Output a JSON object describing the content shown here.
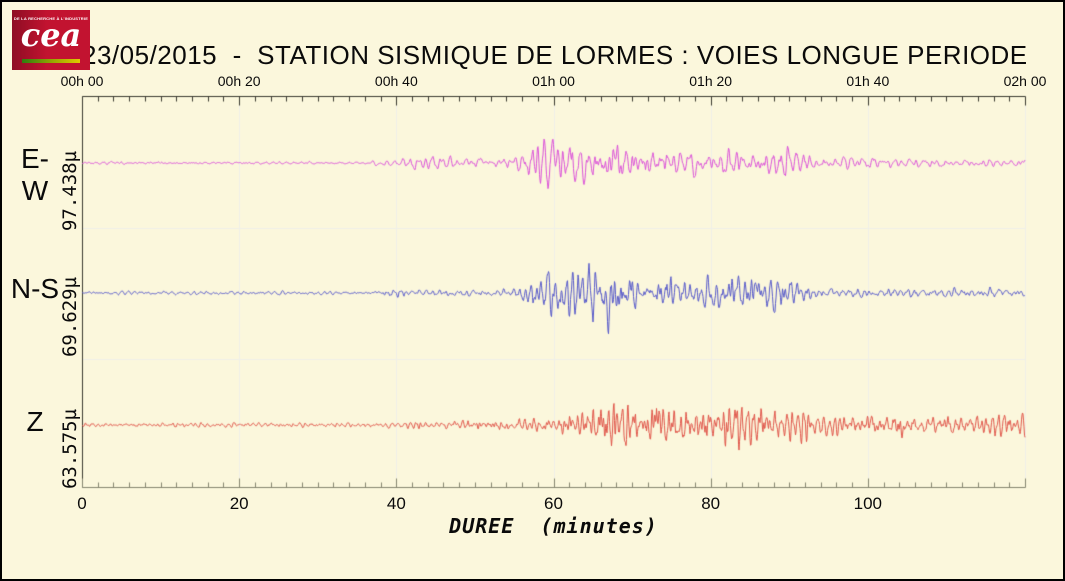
{
  "logo": {
    "brand": "cea",
    "tagline": "DE LA RECHERCHE À L'INDUSTRIE"
  },
  "colors": {
    "background": "#FBF7DC",
    "axis": "#39392f",
    "bottom_axis": "#84846f",
    "grid": "#EFEFE8",
    "logo_red": "#c21330",
    "trace_ew": "#DA4FD8",
    "trace_ns": "#5356C9",
    "trace_z": "#DF5348"
  },
  "chart_data": {
    "type": "line",
    "title": "23/05/2015  -  STATION SISMIQUE DE LORMES : VOIES LONGUE PERIODE",
    "subtitle": "",
    "xlabel": "DUREE  (minutes)",
    "ylabel": "",
    "x_axis": {
      "unit": "minutes",
      "range": [
        0,
        120
      ],
      "top_ticks": [
        "00h 00",
        "00h 20",
        "00h 40",
        "01h 00",
        "01h 20",
        "01h 40",
        "02h 00"
      ],
      "bottom_ticks": [
        0,
        20,
        40,
        60,
        80,
        100
      ],
      "major_tick_minutes": 20,
      "minor_tick_minutes": 2,
      "grid": "faint vertical lines every 20 minutes"
    },
    "legend_position": "left margin (trace names stacked)",
    "series": [
      {
        "name": "E-W",
        "peak_amplitude_label": "97.438µ",
        "color": "#DA4FD8",
        "description": "East-West long-period channel; quiet until ~40 min, strong event onset ~57 min, maximum ~61 min, slow coda decay",
        "envelope": [
          [
            0,
            0.045
          ],
          [
            36,
            0.045
          ],
          [
            40,
            0.1
          ],
          [
            42,
            0.16
          ],
          [
            44,
            0.16
          ],
          [
            46,
            0.13
          ],
          [
            48,
            0.13
          ],
          [
            50,
            0.14
          ],
          [
            52,
            0.15
          ],
          [
            54,
            0.18
          ],
          [
            56,
            0.3
          ],
          [
            57,
            0.45
          ],
          [
            58,
            0.55
          ],
          [
            60,
            0.8
          ],
          [
            61,
            1.0
          ],
          [
            62,
            0.95
          ],
          [
            63,
            0.85
          ],
          [
            64,
            0.6
          ],
          [
            65,
            0.55
          ],
          [
            66,
            0.5
          ],
          [
            68,
            0.55
          ],
          [
            70,
            0.5
          ],
          [
            72,
            0.42
          ],
          [
            74,
            0.4
          ],
          [
            76,
            0.35
          ],
          [
            78,
            0.38
          ],
          [
            80,
            0.35
          ],
          [
            82,
            0.4
          ],
          [
            84,
            0.35
          ],
          [
            86,
            0.3
          ],
          [
            88,
            0.42
          ],
          [
            90,
            0.45
          ],
          [
            91,
            0.4
          ],
          [
            92,
            0.3
          ],
          [
            94,
            0.18
          ],
          [
            96,
            0.15
          ],
          [
            98,
            0.16
          ],
          [
            100,
            0.15
          ],
          [
            102,
            0.13
          ],
          [
            104,
            0.14
          ],
          [
            106,
            0.12
          ],
          [
            108,
            0.14
          ],
          [
            110,
            0.12
          ],
          [
            112,
            0.13
          ],
          [
            114,
            0.12
          ],
          [
            116,
            0.13
          ],
          [
            118,
            0.12
          ],
          [
            120,
            0.13
          ]
        ]
      },
      {
        "name": "N-S",
        "peak_amplitude_label": "69.629µ",
        "color": "#5356C9",
        "description": "North-South long-period channel; small burst ~41 min, main event 57-90 min with maximum spike ~67 min",
        "envelope": [
          [
            0,
            0.04
          ],
          [
            36,
            0.05
          ],
          [
            40,
            0.13
          ],
          [
            42,
            0.1
          ],
          [
            44,
            0.08
          ],
          [
            46,
            0.08
          ],
          [
            48,
            0.09
          ],
          [
            50,
            0.1
          ],
          [
            52,
            0.1
          ],
          [
            54,
            0.13
          ],
          [
            56,
            0.25
          ],
          [
            58,
            0.45
          ],
          [
            60,
            0.6
          ],
          [
            61,
            0.65
          ],
          [
            62,
            0.7
          ],
          [
            63,
            0.8
          ],
          [
            64,
            0.7
          ],
          [
            65,
            0.65
          ],
          [
            66,
            0.7
          ],
          [
            67,
            1.0
          ],
          [
            68,
            0.7
          ],
          [
            69,
            0.6
          ],
          [
            70,
            0.55
          ],
          [
            71,
            0.5
          ],
          [
            72,
            0.48
          ],
          [
            73,
            0.55
          ],
          [
            74,
            0.6
          ],
          [
            75,
            0.5
          ],
          [
            76,
            0.45
          ],
          [
            78,
            0.45
          ],
          [
            80,
            0.5
          ],
          [
            81,
            0.55
          ],
          [
            82,
            0.45
          ],
          [
            84,
            0.4
          ],
          [
            86,
            0.45
          ],
          [
            88,
            0.48
          ],
          [
            89,
            0.5
          ],
          [
            90,
            0.4
          ],
          [
            91,
            0.3
          ],
          [
            92,
            0.25
          ],
          [
            93,
            0.2
          ],
          [
            94,
            0.18
          ],
          [
            96,
            0.15
          ],
          [
            98,
            0.18
          ],
          [
            100,
            0.15
          ],
          [
            102,
            0.13
          ],
          [
            104,
            0.13
          ],
          [
            106,
            0.15
          ],
          [
            108,
            0.13
          ],
          [
            110,
            0.12
          ],
          [
            112,
            0.13
          ],
          [
            114,
            0.12
          ],
          [
            116,
            0.14
          ],
          [
            118,
            0.13
          ],
          [
            120,
            0.14
          ]
        ]
      },
      {
        "name": "Z",
        "peak_amplitude_label": "63.575µ",
        "color": "#DF5348",
        "description": "Vertical long-period channel; elevated background noise, event builds from ~62 min, large spikes ~67, ~73 and maximum ~83 min, long energetic coda to end",
        "envelope": [
          [
            0,
            0.06
          ],
          [
            4,
            0.07
          ],
          [
            8,
            0.06
          ],
          [
            12,
            0.07
          ],
          [
            16,
            0.06
          ],
          [
            20,
            0.07
          ],
          [
            24,
            0.06
          ],
          [
            28,
            0.07
          ],
          [
            32,
            0.06
          ],
          [
            36,
            0.07
          ],
          [
            40,
            0.08
          ],
          [
            44,
            0.09
          ],
          [
            46,
            0.1
          ],
          [
            48,
            0.11
          ],
          [
            50,
            0.12
          ],
          [
            52,
            0.11
          ],
          [
            54,
            0.13
          ],
          [
            56,
            0.15
          ],
          [
            58,
            0.17
          ],
          [
            60,
            0.2
          ],
          [
            62,
            0.25
          ],
          [
            64,
            0.35
          ],
          [
            65,
            0.45
          ],
          [
            66,
            0.6
          ],
          [
            67,
            0.9
          ],
          [
            68,
            0.75
          ],
          [
            69,
            0.6
          ],
          [
            70,
            0.5
          ],
          [
            71,
            0.55
          ],
          [
            72,
            0.6
          ],
          [
            73,
            0.8
          ],
          [
            74,
            0.6
          ],
          [
            75,
            0.5
          ],
          [
            76,
            0.5
          ],
          [
            78,
            0.52
          ],
          [
            80,
            0.55
          ],
          [
            81,
            0.6
          ],
          [
            82,
            0.75
          ],
          [
            83,
            1.0
          ],
          [
            84,
            0.75
          ],
          [
            85,
            0.6
          ],
          [
            86,
            0.5
          ],
          [
            87,
            0.48
          ],
          [
            88,
            0.45
          ],
          [
            90,
            0.42
          ],
          [
            92,
            0.38
          ],
          [
            94,
            0.33
          ],
          [
            96,
            0.3
          ],
          [
            98,
            0.32
          ],
          [
            100,
            0.3
          ],
          [
            102,
            0.27
          ],
          [
            104,
            0.3
          ],
          [
            106,
            0.25
          ],
          [
            108,
            0.27
          ],
          [
            110,
            0.23
          ],
          [
            112,
            0.26
          ],
          [
            114,
            0.23
          ],
          [
            116,
            0.25
          ],
          [
            118,
            0.3
          ],
          [
            120,
            0.28
          ]
        ]
      }
    ]
  }
}
